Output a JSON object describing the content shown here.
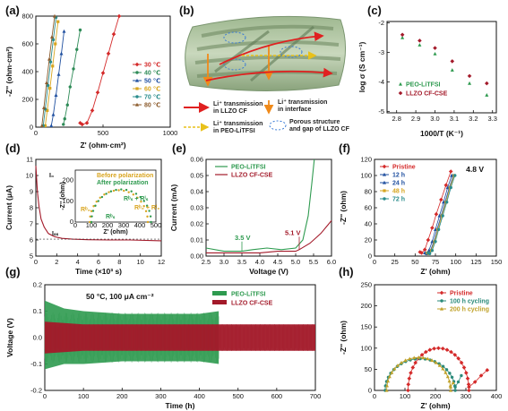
{
  "colors": {
    "p30": "#d42a2a",
    "p40": "#2e8b57",
    "p50": "#2050a0",
    "p60": "#d7a51f",
    "p70": "#2a8c8c",
    "p80": "#8b5a2b",
    "peo": "#2e9a4f",
    "cse": "#a31a2a",
    "axis": "#111111",
    "h100": "#2a8a7a",
    "h200": "#c0a22a"
  },
  "panels": {
    "a": {
      "label": "(a)",
      "xlabel": "Z' (ohm·cm²)",
      "ylabel": "-Z'' (ohm·cm²)",
      "xticks": [
        "0",
        "500",
        "1000"
      ],
      "yticks": [
        "0",
        "200",
        "400",
        "600",
        "800"
      ],
      "legend": [
        "30 ℃",
        "40 ℃",
        "50 ℃",
        "60 ℃",
        "70 ℃",
        "80 ℃"
      ]
    },
    "b": {
      "label": "(b)",
      "legend": [
        "Li⁺ transmission in LLZO CF",
        "Li⁺ transmission in interface",
        "Li⁺ transmission in PEO-LiTFSI",
        "Porous structure and gap of LLZO CF"
      ]
    },
    "c": {
      "label": "(c)",
      "xlabel": "1000/T (K⁻¹)",
      "ylabel": "log σ (S cm⁻¹)",
      "xticks": [
        "2.8",
        "2.9",
        "3.0",
        "3.1",
        "3.2",
        "3.3"
      ],
      "yticks": [
        "-2",
        "-3",
        "-4",
        "-5"
      ],
      "legend": [
        "PEO-LiTFSI",
        "LLZO CF-CSE"
      ]
    },
    "d": {
      "label": "(d)",
      "xlabel": "Time (×10³ s)",
      "ylabel": "Current (μA)",
      "xticks": [
        "0",
        "2",
        "4",
        "6",
        "8",
        "10",
        "12"
      ],
      "yticks": [
        "5",
        "6",
        "7",
        "8",
        "9",
        "10",
        "11"
      ],
      "i0": "I₀",
      "iss": "Iₛₛ",
      "inset": {
        "xlabel": "Z' (ohm)",
        "ylabel": "-Z'' (ohm)",
        "xticks": [
          "0",
          "100",
          "200",
          "300",
          "400",
          "500"
        ],
        "yticks": [
          "0",
          "100",
          "200"
        ],
        "legend": [
          "Before polarization",
          "After polarization"
        ],
        "r0": "Rᵇ₀ + Rᴵ₀",
        "rs": "Rᵇₛ + Rᴵₛ",
        "rb0": "Rᵇ₀",
        "rbs": "Rᵇₛ"
      }
    },
    "e": {
      "label": "(e)",
      "xlabel": "Voltage (V)",
      "ylabel": "Current (mA)",
      "xticks": [
        "2.5",
        "3.0",
        "3.5",
        "4.0",
        "4.5",
        "5.0",
        "5.5",
        "6.0"
      ],
      "yticks": [
        "0.00",
        "0.01",
        "0.02",
        "0.03",
        "0.04",
        "0.05",
        "0.06"
      ],
      "legend": [
        "PEO-LiTFSI",
        "LLZO CF-CSE"
      ],
      "ann1": "3.5 V",
      "ann2": "5.1 V"
    },
    "f": {
      "label": "(f)",
      "xlabel": "Z' (ohm)",
      "ylabel": "-Z'' (ohm)",
      "tag": "4.8 V",
      "xticks": [
        "0",
        "25",
        "50",
        "75",
        "100",
        "125",
        "150"
      ],
      "yticks": [
        "0",
        "20",
        "40",
        "60",
        "80",
        "100",
        "120"
      ],
      "legend": [
        "Pristine",
        "12 h",
        "24 h",
        "48 h",
        "72 h"
      ]
    },
    "g": {
      "label": "(g)",
      "xlabel": "Time (h)",
      "ylabel": "Voltage (V)",
      "condition": "50 °C, 100 μA cm⁻²",
      "xticks": [
        "0",
        "100",
        "200",
        "300",
        "400",
        "500",
        "600",
        "700"
      ],
      "yticks": [
        "-0.2",
        "-0.1",
        "0.0",
        "0.1",
        "0.2"
      ],
      "legend": [
        "PEO-LiTFSI",
        "LLZO CF-CSE"
      ]
    },
    "h": {
      "label": "(h)",
      "xlabel": "Z' (ohm)",
      "ylabel": "-Z'' (ohm)",
      "xticks": [
        "0",
        "100",
        "200",
        "300",
        "400"
      ],
      "yticks": [
        "0",
        "50",
        "100",
        "150",
        "200",
        "250"
      ],
      "legend": [
        "Pristine",
        "100 h cycling",
        "200 h cycling"
      ]
    }
  },
  "chart_data": [
    {
      "type": "scatter",
      "panel": "a",
      "xlim": [
        0,
        1000
      ],
      "ylim": [
        0,
        800
      ],
      "series": [
        {
          "name": "30 ℃",
          "x": [
            330,
            345,
            380,
            420,
            460,
            500,
            540,
            580,
            620
          ],
          "y": [
            30,
            20,
            30,
            120,
            250,
            390,
            530,
            670,
            800
          ]
        },
        {
          "name": "40 ℃",
          "x": [
            205,
            215,
            235,
            255,
            280,
            305,
            330
          ],
          "y": [
            20,
            60,
            160,
            290,
            420,
            560,
            700
          ]
        },
        {
          "name": "50 ℃",
          "x": [
            115,
            130,
            150,
            170,
            190,
            210
          ],
          "y": [
            10,
            90,
            230,
            380,
            530,
            690
          ]
        },
        {
          "name": "60 ℃",
          "x": [
            70,
            85,
            105,
            125,
            145,
            165
          ],
          "y": [
            10,
            120,
            280,
            440,
            600,
            760
          ]
        },
        {
          "name": "70 ℃",
          "x": [
            55,
            70,
            90,
            110,
            130,
            150
          ],
          "y": [
            10,
            130,
            300,
            470,
            630,
            790
          ]
        },
        {
          "name": "80 ℃",
          "x": [
            45,
            60,
            80,
            100,
            120,
            140
          ],
          "y": [
            10,
            140,
            320,
            490,
            650,
            800
          ]
        }
      ]
    },
    {
      "type": "scatter",
      "panel": "c",
      "xlim": [
        2.75,
        3.32
      ],
      "ylim": [
        -5,
        -2
      ],
      "series": [
        {
          "name": "PEO-LiTFSI",
          "x": [
            2.83,
            2.92,
            3.0,
            3.09,
            3.18,
            3.27
          ],
          "y": [
            -2.5,
            -2.75,
            -3.05,
            -3.6,
            -4.05,
            -4.45
          ]
        },
        {
          "name": "LLZO CF-CSE",
          "x": [
            2.83,
            2.92,
            3.0,
            3.09,
            3.18,
            3.27
          ],
          "y": [
            -2.4,
            -2.6,
            -2.85,
            -3.3,
            -3.8,
            -4.05
          ]
        }
      ]
    },
    {
      "type": "line",
      "panel": "d",
      "xlim": [
        0,
        12
      ],
      "ylim": [
        5,
        11
      ],
      "x": [
        0,
        0.15,
        0.3,
        0.5,
        0.8,
        1.2,
        1.8,
        2.5,
        3.5,
        5,
        7,
        9,
        12
      ],
      "y": [
        10.6,
        9.0,
        8.1,
        7.3,
        6.8,
        6.4,
        6.2,
        6.1,
        6.05,
        6.02,
        6.0,
        6.0,
        5.95
      ]
    },
    {
      "type": "line",
      "panel": "e",
      "xlim": [
        2.5,
        6.0
      ],
      "ylim": [
        0,
        0.06
      ],
      "series": [
        {
          "name": "PEO-LiTFSI",
          "x": [
            2.5,
            3.0,
            3.5,
            3.8,
            4.2,
            4.6,
            5.0,
            5.2,
            5.35,
            5.45,
            5.52
          ],
          "y": [
            0.005,
            0.003,
            0.003,
            0.004,
            0.005,
            0.004,
            0.005,
            0.01,
            0.025,
            0.045,
            0.06
          ]
        },
        {
          "name": "LLZO CF-CSE",
          "x": [
            2.5,
            3.0,
            3.5,
            4.0,
            4.5,
            5.0,
            5.1,
            5.4,
            5.7,
            6.0
          ],
          "y": [
            0.002,
            0.002,
            0.002,
            0.002,
            0.003,
            0.003,
            0.004,
            0.008,
            0.014,
            0.022
          ]
        }
      ]
    },
    {
      "type": "scatter",
      "panel": "f",
      "xlim": [
        0,
        150
      ],
      "ylim": [
        0,
        120
      ],
      "series": [
        {
          "name": "Pristine",
          "x": [
            56,
            58,
            62,
            66,
            71,
            76,
            82,
            88,
            94
          ],
          "y": [
            5,
            4,
            8,
            20,
            35,
            52,
            70,
            88,
            105
          ]
        },
        {
          "name": "12 h",
          "x": [
            62,
            64,
            67,
            71,
            75,
            80,
            85,
            90,
            95
          ],
          "y": [
            4,
            3,
            7,
            18,
            33,
            50,
            67,
            85,
            100
          ]
        },
        {
          "name": "24 h",
          "x": [
            64,
            66,
            69,
            73,
            77,
            82,
            87,
            92,
            97
          ],
          "y": [
            4,
            3,
            7,
            18,
            33,
            50,
            67,
            85,
            100
          ]
        },
        {
          "name": "48 h",
          "x": [
            65,
            67,
            70,
            74,
            78,
            83,
            88,
            93,
            98
          ],
          "y": [
            4,
            3,
            7,
            18,
            33,
            50,
            67,
            85,
            100
          ]
        },
        {
          "name": "72 h",
          "x": [
            66,
            68,
            71,
            75,
            79,
            84,
            89,
            94,
            99
          ],
          "y": [
            4,
            3,
            7,
            18,
            33,
            50,
            67,
            85,
            100
          ]
        }
      ]
    },
    {
      "type": "area",
      "panel": "g",
      "xlim": [
        0,
        700
      ],
      "ylim": [
        -0.2,
        0.2
      ],
      "series": [
        {
          "name": "PEO-LiTFSI",
          "x": [
            0,
            50,
            100,
            200,
            300,
            400,
            450
          ],
          "upper": [
            0.14,
            0.11,
            0.1,
            0.09,
            0.09,
            0.09,
            0.1
          ],
          "lower": [
            -0.12,
            -0.1,
            -0.1,
            -0.09,
            -0.09,
            -0.09,
            -0.1
          ]
        },
        {
          "name": "LLZO CF-CSE",
          "x": [
            0,
            100,
            200,
            300,
            400,
            500,
            600,
            700
          ],
          "upper": [
            0.06,
            0.05,
            0.05,
            0.05,
            0.05,
            0.05,
            0.05,
            0.05
          ],
          "lower": [
            -0.06,
            -0.05,
            -0.05,
            -0.05,
            -0.05,
            -0.05,
            -0.05,
            -0.05
          ]
        }
      ]
    },
    {
      "type": "scatter",
      "panel": "h",
      "xlim": [
        0,
        400
      ],
      "ylim": [
        0,
        250
      ],
      "series": [
        {
          "name": "Pristine",
          "arc": [
            110,
            310,
            100
          ],
          "tail": [
            [
              310,
              8
            ],
            [
              330,
              20
            ],
            [
              350,
              35
            ],
            [
              370,
              48
            ]
          ]
        },
        {
          "name": "100 h cycling",
          "arc": [
            35,
            265,
            75
          ],
          "tail": [
            [
              265,
              8
            ],
            [
              275,
              20
            ],
            [
              285,
              35
            ]
          ]
        },
        {
          "name": "200 h cycling",
          "arc": [
            40,
            250,
            78
          ],
          "tail": [
            [
              250,
              8
            ],
            [
              258,
              18
            ]
          ]
        }
      ]
    }
  ]
}
